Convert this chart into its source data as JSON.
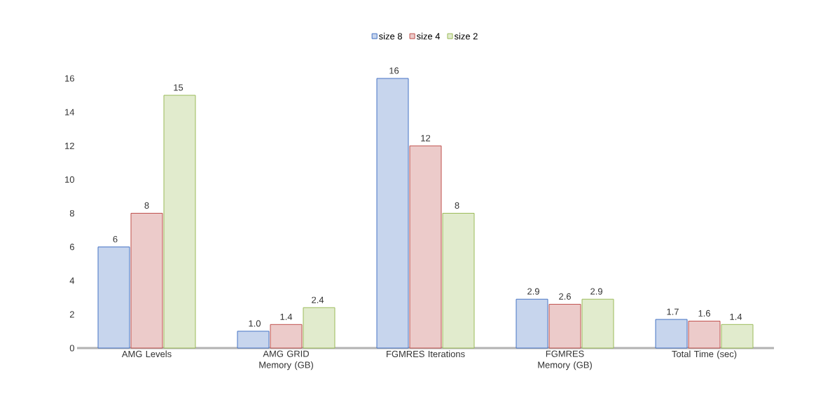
{
  "chart_data": {
    "type": "bar",
    "categories": [
      "AMG Levels",
      "AMG GRID Memory (GB)",
      "FGMRES Iterations",
      "FGMRES Memory (GB)",
      "Total Time (sec)"
    ],
    "series": [
      {
        "name": "size 8",
        "color": "#4472c4",
        "values": [
          6,
          1.0,
          16,
          2.9,
          1.7
        ],
        "value_labels": [
          "6",
          "1.0",
          "16",
          "2.9",
          "1.7"
        ]
      },
      {
        "name": "size 4",
        "color": "#c0504d",
        "values": [
          8,
          1.4,
          12,
          2.6,
          1.6
        ],
        "value_labels": [
          "8",
          "1.4",
          "12",
          "2.6",
          "1.6"
        ]
      },
      {
        "name": "size 2",
        "color": "#9bbb59",
        "values": [
          15,
          2.4,
          8,
          2.9,
          1.4
        ],
        "value_labels": [
          "15",
          "2.4",
          "8",
          "2.9",
          "1.4"
        ]
      }
    ],
    "ylim": [
      0,
      16
    ],
    "yticks": [
      0,
      2,
      4,
      6,
      8,
      10,
      12,
      14,
      16
    ],
    "grid": false,
    "legend": "top"
  }
}
